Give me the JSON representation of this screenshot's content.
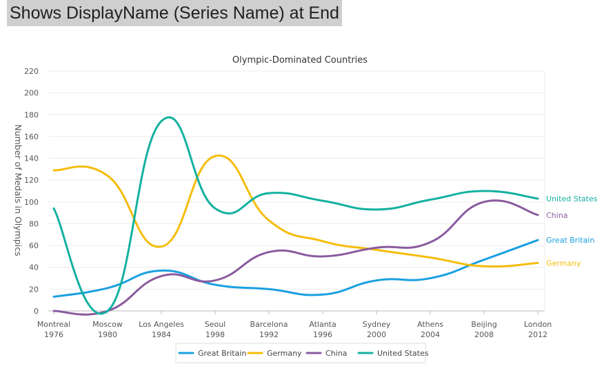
{
  "header": {
    "title": "Shows DisplayName (Series Name) at End"
  },
  "chart_data": {
    "type": "line",
    "title": "Olympic-Dominated Countries",
    "ylabel": "Number of Medals in Olympics",
    "xlabel": "",
    "ylim": [
      0,
      220
    ],
    "y_ticks": [
      0,
      20,
      40,
      60,
      80,
      100,
      120,
      140,
      160,
      180,
      200,
      220
    ],
    "categories": [
      {
        "city": "Montreal",
        "year": "1976"
      },
      {
        "city": "Moscow",
        "year": "1980"
      },
      {
        "city": "Los Angeles",
        "year": "1984"
      },
      {
        "city": "Seoul",
        "year": "1998"
      },
      {
        "city": "Barcelona",
        "year": "1992"
      },
      {
        "city": "Atlanta",
        "year": "1996"
      },
      {
        "city": "Sydney",
        "year": "2000"
      },
      {
        "city": "Athens",
        "year": "2004"
      },
      {
        "city": "Beijing",
        "year": "2008"
      },
      {
        "city": "London",
        "year": "2012"
      }
    ],
    "grid": true,
    "legend_position": "bottom",
    "series": [
      {
        "name": "Great Britain",
        "color": "#1aa0e0",
        "values": [
          13,
          21,
          37,
          24,
          20,
          15,
          28,
          30,
          47,
          65
        ]
      },
      {
        "name": "Germany",
        "color": "#f5bd0b",
        "values": [
          129,
          124,
          59,
          142,
          83,
          64,
          56,
          49,
          41,
          44
        ]
      },
      {
        "name": "China",
        "color": "#8a5a9e",
        "values": [
          0,
          0,
          32,
          28,
          54,
          50,
          58,
          63,
          100,
          88
        ]
      },
      {
        "name": "United States",
        "color": "#14b0a0",
        "values": [
          94,
          0,
          174,
          94,
          108,
          101,
          93,
          102,
          110,
          103
        ]
      }
    ]
  }
}
